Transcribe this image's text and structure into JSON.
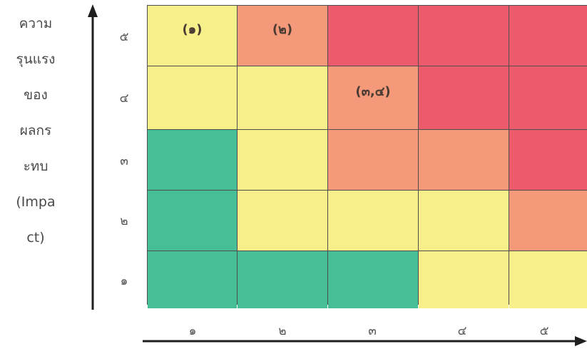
{
  "y_axis_label": [
    "ความ",
    "รุนแรง",
    "ของ",
    "ผลกร",
    "ะทบ",
    "(Impa",
    "ct)"
  ],
  "y_ticks": [
    "๕",
    "๔",
    "๓",
    "๒",
    "๑"
  ],
  "x_ticks": [
    "๑",
    "๒",
    "๓",
    "๔",
    "๕"
  ],
  "colors": {
    "red": "#ec5b6c",
    "orange": "#f49a7a",
    "yellow": "#f6ef8a",
    "green": "#46bf97",
    "axis": "#1f1f1f"
  },
  "chart_data": {
    "type": "heatmap",
    "rows": [
      "๕",
      "๔",
      "๓",
      "๒",
      "๑"
    ],
    "columns": [
      "๑",
      "๒",
      "๓",
      "๔",
      "๕"
    ],
    "levels": [
      [
        "yellow",
        "orange",
        "red",
        "red",
        "red"
      ],
      [
        "yellow",
        "yellow",
        "orange",
        "red",
        "red"
      ],
      [
        "green",
        "yellow",
        "orange",
        "orange",
        "red"
      ],
      [
        "green",
        "yellow",
        "yellow",
        "yellow",
        "orange"
      ],
      [
        "green",
        "green",
        "green",
        "yellow",
        "yellow"
      ]
    ],
    "labels": [
      [
        "(๑)",
        "(๒)",
        "",
        "",
        ""
      ],
      [
        "",
        "",
        "(๓,๔)",
        "",
        ""
      ],
      [
        "",
        "",
        "",
        "",
        ""
      ],
      [
        "",
        "",
        "",
        "",
        ""
      ],
      [
        "",
        "",
        "",
        "",
        ""
      ]
    ]
  }
}
